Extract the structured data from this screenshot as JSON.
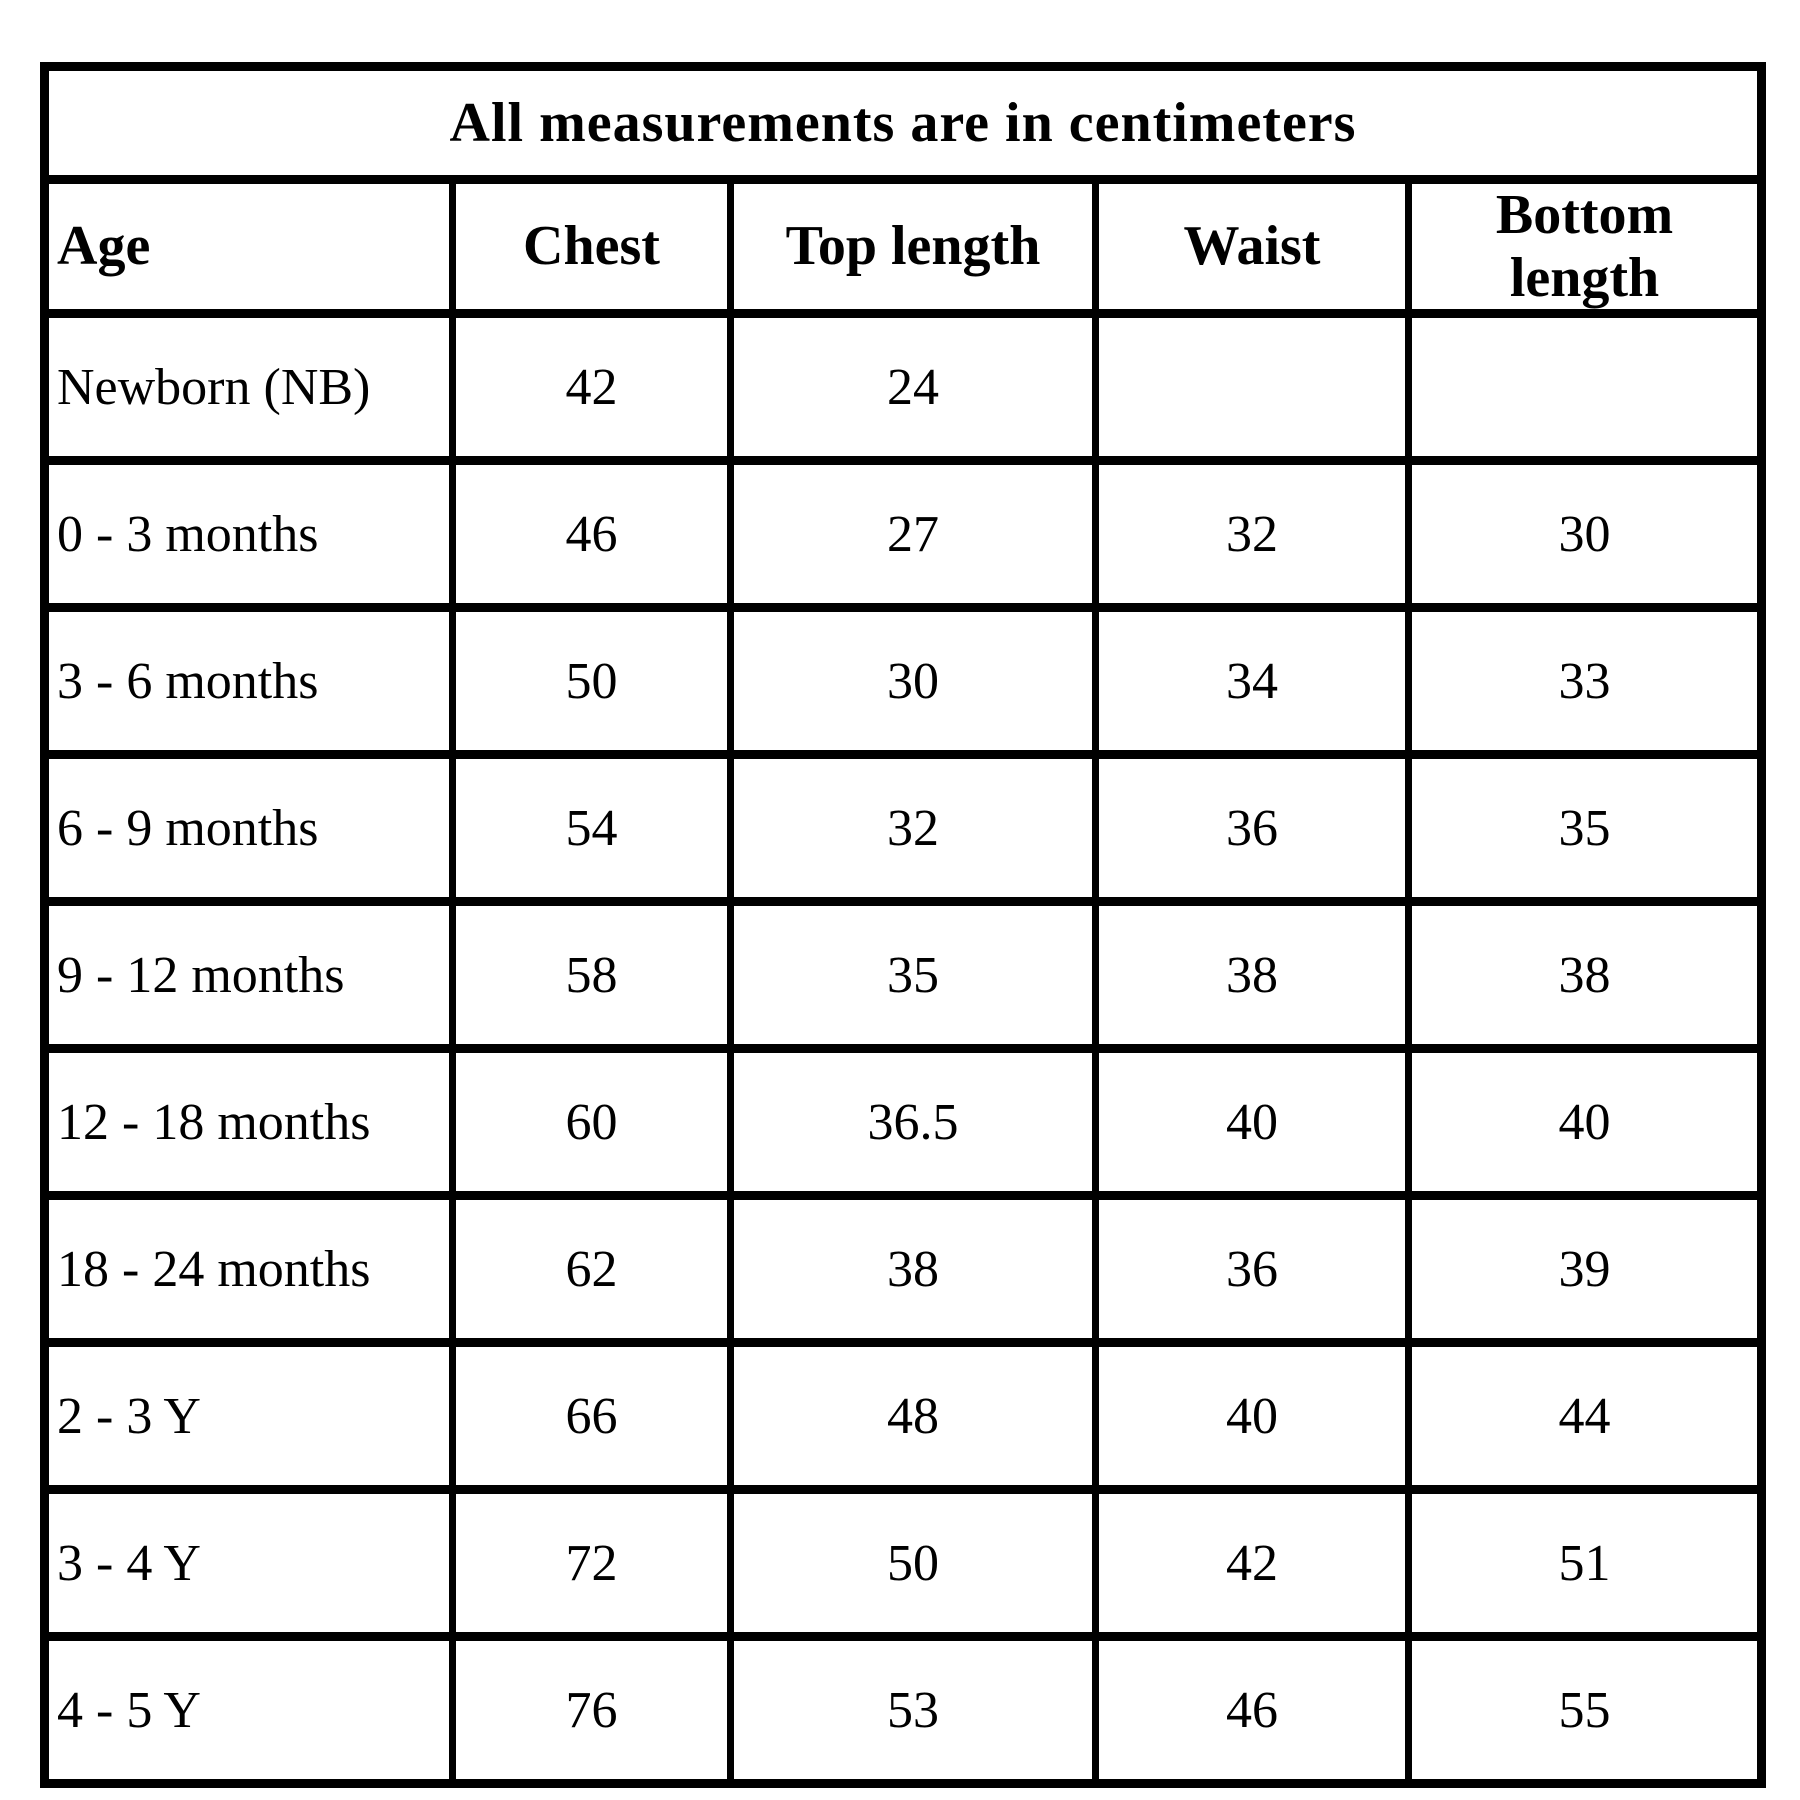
{
  "colors": {
    "border": "#000000",
    "background": "#ffffff",
    "text": "#000000"
  },
  "chart_data": {
    "type": "table",
    "title": "All measurements are in centimeters",
    "units": "centimeters",
    "columns": [
      "Age",
      "Chest",
      "Top length",
      "Waist",
      "Bottom length"
    ],
    "rows": [
      [
        "Newborn (NB)",
        42,
        24,
        null,
        null
      ],
      [
        "0 - 3 months",
        46,
        27,
        32,
        30
      ],
      [
        "3 - 6 months",
        50,
        30,
        34,
        33
      ],
      [
        "6 - 9 months",
        54,
        32,
        36,
        35
      ],
      [
        "9 - 12 months",
        58,
        35,
        38,
        38
      ],
      [
        "12 - 18 months",
        60,
        36.5,
        40,
        40
      ],
      [
        "18 - 24 months",
        62,
        38,
        36,
        39
      ],
      [
        "2 - 3 Y",
        66,
        48,
        40,
        44
      ],
      [
        "3 - 4 Y",
        72,
        50,
        42,
        51
      ],
      [
        "4 - 5 Y",
        76,
        53,
        46,
        55
      ]
    ],
    "layout": {
      "grid": true,
      "title_row_spans_all_columns": true,
      "age_column_align": "left",
      "value_columns_align": "center"
    }
  }
}
